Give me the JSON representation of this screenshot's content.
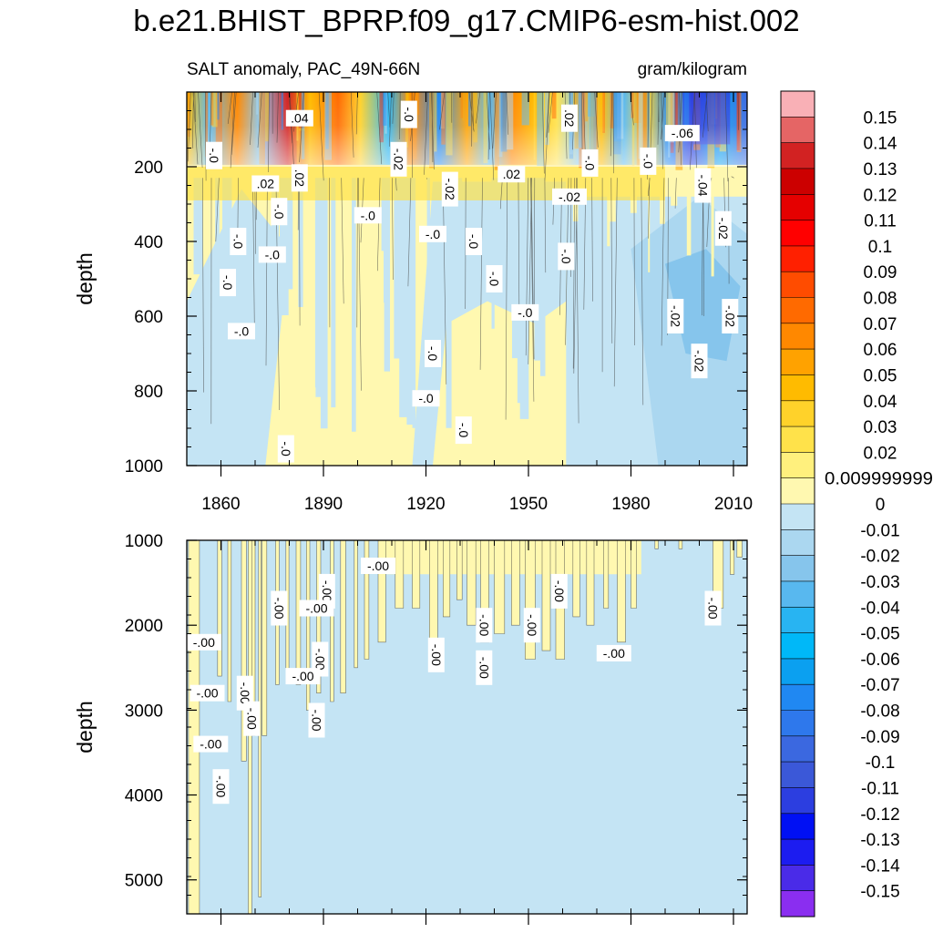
{
  "title": "b.e21.BHIST_BPRP.f09_g17.CMIP6-esm-hist.002",
  "chart_data": {
    "type": "heatmap",
    "subtitle_left": "SALT anomaly, PAC_49N-66N",
    "subtitle_right": "gram/kilogram",
    "ylabel": "depth",
    "x_range": [
      1850,
      2014
    ],
    "x_ticks": [
      "1860",
      "1890",
      "1920",
      "1950",
      "1980",
      "2010"
    ],
    "x_tick_values": [
      1860,
      1890,
      1920,
      1950,
      1980,
      2010
    ],
    "top_panel": {
      "ylim": [
        0,
        1000
      ],
      "y_ticks": [
        "200",
        "400",
        "600",
        "800",
        "1000"
      ],
      "y_tick_values": [
        200,
        400,
        600,
        800,
        1000
      ],
      "contour_labels": [
        {
          "text": ".04",
          "x": 1883,
          "y": 70
        },
        {
          "text": "-.0",
          "x": 1915,
          "y": 60
        },
        {
          "text": ".02",
          "x": 1962,
          "y": 70
        },
        {
          "text": "-.06",
          "x": 1995,
          "y": 110
        },
        {
          "text": "-.0",
          "x": 1858,
          "y": 170
        },
        {
          "text": "-.02",
          "x": 1912,
          "y": 180
        },
        {
          "text": ".02",
          "x": 1873,
          "y": 245
        },
        {
          "text": ".02",
          "x": 1883,
          "y": 230
        },
        {
          "text": "-.02",
          "x": 1927,
          "y": 260
        },
        {
          "text": ".02",
          "x": 1945,
          "y": 220
        },
        {
          "text": "-.0",
          "x": 1968,
          "y": 190
        },
        {
          "text": "-.0",
          "x": 1985,
          "y": 185
        },
        {
          "text": "-.02",
          "x": 1962,
          "y": 280
        },
        {
          "text": "-.04",
          "x": 2001,
          "y": 250
        },
        {
          "text": "-.0",
          "x": 1877,
          "y": 320
        },
        {
          "text": "-.0",
          "x": 1903,
          "y": 330
        },
        {
          "text": "-.02",
          "x": 2007,
          "y": 365
        },
        {
          "text": "-.0",
          "x": 1865,
          "y": 400
        },
        {
          "text": "-.0",
          "x": 1922,
          "y": 380
        },
        {
          "text": "-.0",
          "x": 1934,
          "y": 400
        },
        {
          "text": "-.0",
          "x": 1961,
          "y": 440
        },
        {
          "text": "-.0",
          "x": 1875,
          "y": 435
        },
        {
          "text": "-.0",
          "x": 1862,
          "y": 510
        },
        {
          "text": "-.0",
          "x": 1940,
          "y": 500
        },
        {
          "text": "-.0",
          "x": 1949,
          "y": 590
        },
        {
          "text": "-.02",
          "x": 1993,
          "y": 600
        },
        {
          "text": "-.02",
          "x": 2009,
          "y": 600
        },
        {
          "text": "-.0",
          "x": 1866,
          "y": 640
        },
        {
          "text": "-.0",
          "x": 1922,
          "y": 700
        },
        {
          "text": "-.02",
          "x": 2000,
          "y": 720
        },
        {
          "text": "-.0",
          "x": 1920,
          "y": 820
        },
        {
          "text": "-.0",
          "x": 1931,
          "y": 905
        },
        {
          "text": "-.0",
          "x": 1879,
          "y": 955
        }
      ]
    },
    "bottom_panel": {
      "ylim": [
        1000,
        5400
      ],
      "y_ticks": [
        "1000",
        "2000",
        "3000",
        "4000",
        "5000"
      ],
      "y_tick_values": [
        1000,
        2000,
        3000,
        4000,
        5000
      ],
      "contour_labels": [
        {
          "text": "-.00",
          "x": 1906,
          "y": 1300
        },
        {
          "text": "-.00",
          "x": 1877,
          "y": 1800
        },
        {
          "text": "-.00",
          "x": 1891,
          "y": 1600
        },
        {
          "text": "-.00",
          "x": 1888,
          "y": 1800
        },
        {
          "text": "-.00",
          "x": 1959,
          "y": 1600
        },
        {
          "text": "-.00",
          "x": 2004,
          "y": 1800
        },
        {
          "text": "-.00",
          "x": 1855,
          "y": 2200
        },
        {
          "text": "-.00",
          "x": 1951,
          "y": 2000
        },
        {
          "text": "-.00",
          "x": 1937,
          "y": 2000
        },
        {
          "text": "-.00",
          "x": 1975,
          "y": 2330
        },
        {
          "text": "-.00",
          "x": 1923,
          "y": 2350
        },
        {
          "text": "-.00",
          "x": 1889,
          "y": 2400
        },
        {
          "text": "-.00",
          "x": 1884,
          "y": 2600
        },
        {
          "text": "-.00",
          "x": 1937,
          "y": 2500
        },
        {
          "text": "-.00",
          "x": 1867,
          "y": 2800
        },
        {
          "text": "-.00",
          "x": 1856,
          "y": 2800
        },
        {
          "text": "-.00",
          "x": 1869,
          "y": 3100
        },
        {
          "text": "-.00",
          "x": 1888,
          "y": 3120
        },
        {
          "text": "-.00",
          "x": 1857,
          "y": 3400
        },
        {
          "text": "-.00",
          "x": 1860,
          "y": 3900
        }
      ]
    },
    "colorbar": {
      "labels": [
        "0.15",
        "0.14",
        "0.13",
        "0.12",
        "0.11",
        "0.1",
        "0.09",
        "0.08",
        "0.07",
        "0.06",
        "0.05",
        "0.04",
        "0.03",
        "0.02",
        "0.009999999",
        "0",
        "-0.01",
        "-0.02",
        "-0.03",
        "-0.04",
        "-0.05",
        "-0.06",
        "-0.07",
        "-0.08",
        "-0.09",
        "-0.1",
        "-0.11",
        "-0.12",
        "-0.13",
        "-0.14",
        "-0.15"
      ],
      "colors": [
        "#f9b0b6",
        "#e56565",
        "#d22222",
        "#cc0000",
        "#e50000",
        "#ff0000",
        "#ff2000",
        "#ff4c00",
        "#ff6a00",
        "#ff8800",
        "#ffa200",
        "#ffbb00",
        "#ffd22a",
        "#ffe24a",
        "#fff07d",
        "#fff8b0",
        "#c4e4f4",
        "#abd7f0",
        "#86c5ec",
        "#58b8ef",
        "#28b4f2",
        "#00b8f8",
        "#0ba0f0",
        "#2088f2",
        "#2e78ec",
        "#3b68e0",
        "#3b58d8",
        "#2c3ee0",
        "#0010f4",
        "#1c1cf0",
        "#4a2be8",
        "#8a2ef0"
      ]
    }
  }
}
